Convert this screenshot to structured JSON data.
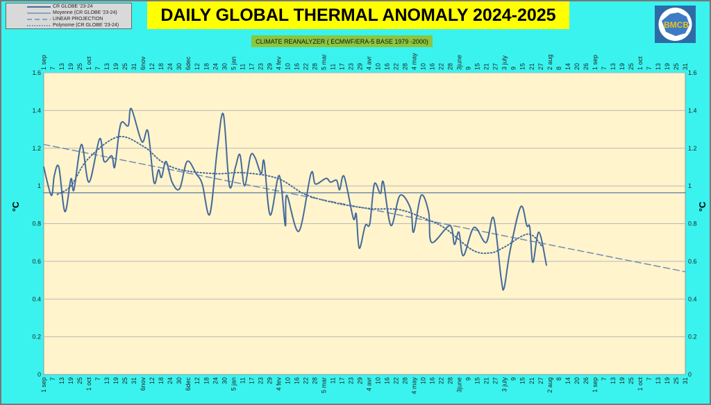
{
  "chart_data": {
    "type": "line",
    "title": "DAILY GLOBAL THERMAL ANOMALY 2024-2025",
    "subtitle": "CLIMATE REANALYZER ( ECMWF/ERA-5 BASE 1979 -2000)",
    "ylabel": "°C",
    "ylabel_right": "°C",
    "ylim": [
      0,
      1.6
    ],
    "yticks": [
      "0",
      "0.2",
      "0.4",
      "0.6",
      "0.8",
      "1",
      "1.2",
      "1.4",
      "1.6"
    ],
    "xlim": [
      "2024-09-01",
      "2025-10-31"
    ],
    "xticks": [
      "1 sep",
      "7",
      "13",
      "19",
      "25",
      "1 oct",
      "7",
      "13",
      "19",
      "25",
      "31",
      "6nov",
      "12",
      "18",
      "24",
      "30",
      "6dec",
      "12",
      "18",
      "24",
      "30",
      "5 jan",
      "11",
      "17",
      "23",
      "29",
      "4 fev",
      "10",
      "16",
      "22",
      "28",
      "5 mar",
      "11",
      "17",
      "23",
      "29",
      "4 avr",
      "10",
      "16",
      "22",
      "28",
      "4 may",
      "10",
      "16",
      "22",
      "28",
      "3june",
      "9",
      "15",
      "21",
      "27",
      "3 july",
      "9",
      "15",
      "21",
      "27",
      "2 aug",
      "8",
      "14",
      "20",
      "26",
      "1 sep",
      "7",
      "13",
      "19",
      "25",
      "1 oct",
      "7",
      "13",
      "19",
      "25",
      "31"
    ],
    "grid": true,
    "legend_position": "top-left",
    "colors": {
      "series": "#44699a",
      "background": "#3af3ee",
      "plot": "#fff4cc",
      "title_box": "#ffff00",
      "subtitle_box": "#8cc63f"
    },
    "series": [
      {
        "name": "CR GLOBE '23-24",
        "style": "solid",
        "points": [
          [
            "2024-09-01",
            1.1
          ],
          [
            "2024-09-06",
            0.95
          ],
          [
            "2024-09-08",
            1.055
          ],
          [
            "2024-09-11",
            1.1
          ],
          [
            "2024-09-15",
            0.864
          ],
          [
            "2024-09-19",
            1.037
          ],
          [
            "2024-09-21",
            0.98
          ],
          [
            "2024-09-26",
            1.22
          ],
          [
            "2024-10-01",
            1.02
          ],
          [
            "2024-10-08",
            1.25
          ],
          [
            "2024-10-11",
            1.13
          ],
          [
            "2024-10-16",
            1.16
          ],
          [
            "2024-10-18",
            1.1
          ],
          [
            "2024-10-21",
            1.29
          ],
          [
            "2024-10-23",
            1.34
          ],
          [
            "2024-10-27",
            1.32
          ],
          [
            "2024-10-29",
            1.41
          ],
          [
            "2024-11-05",
            1.235
          ],
          [
            "2024-11-09",
            1.29
          ],
          [
            "2024-11-13",
            1.02
          ],
          [
            "2024-11-16",
            1.085
          ],
          [
            "2024-11-18",
            1.045
          ],
          [
            "2024-11-21",
            1.13
          ],
          [
            "2024-11-25",
            1.02
          ],
          [
            "2024-11-30",
            0.985
          ],
          [
            "2024-12-05",
            1.13
          ],
          [
            "2024-12-11",
            1.065
          ],
          [
            "2024-12-15",
            1.01
          ],
          [
            "2024-12-20",
            0.85
          ],
          [
            "2024-12-25",
            1.195
          ],
          [
            "2024-12-29",
            1.38
          ],
          [
            "2025-01-02",
            1.0
          ],
          [
            "2025-01-06",
            1.1
          ],
          [
            "2025-01-09",
            1.165
          ],
          [
            "2025-01-12",
            1.0
          ],
          [
            "2025-01-16",
            1.16
          ],
          [
            "2025-01-19",
            1.15
          ],
          [
            "2025-01-23",
            1.065
          ],
          [
            "2025-01-25",
            1.13
          ],
          [
            "2025-01-29",
            0.846
          ],
          [
            "2025-02-04",
            1.055
          ],
          [
            "2025-02-08",
            0.79
          ],
          [
            "2025-02-09",
            0.95
          ],
          [
            "2025-02-17",
            0.76
          ],
          [
            "2025-02-25",
            1.065
          ],
          [
            "2025-02-28",
            1.01
          ],
          [
            "2025-03-07",
            1.04
          ],
          [
            "2025-03-10",
            1.02
          ],
          [
            "2025-03-14",
            1.03
          ],
          [
            "2025-03-16",
            0.98
          ],
          [
            "2025-03-19",
            1.05
          ],
          [
            "2025-03-25",
            0.83
          ],
          [
            "2025-03-27",
            0.85
          ],
          [
            "2025-03-29",
            0.67
          ],
          [
            "2025-04-02",
            0.79
          ],
          [
            "2025-04-05",
            0.8
          ],
          [
            "2025-04-08",
            1.01
          ],
          [
            "2025-04-12",
            0.96
          ],
          [
            "2025-04-14",
            1.02
          ],
          [
            "2025-04-19",
            0.79
          ],
          [
            "2025-04-25",
            0.95
          ],
          [
            "2025-05-02",
            0.88
          ],
          [
            "2025-05-04",
            0.755
          ],
          [
            "2025-05-09",
            0.95
          ],
          [
            "2025-05-14",
            0.86
          ],
          [
            "2025-05-16",
            0.7
          ],
          [
            "2025-05-28",
            0.79
          ],
          [
            "2025-05-31",
            0.69
          ],
          [
            "2025-06-03",
            0.755
          ],
          [
            "2025-06-06",
            0.63
          ],
          [
            "2025-06-13",
            0.78
          ],
          [
            "2025-06-21",
            0.7
          ],
          [
            "2025-06-26",
            0.83
          ],
          [
            "2025-07-01",
            0.51
          ],
          [
            "2025-07-03",
            0.46
          ],
          [
            "2025-07-07",
            0.66
          ],
          [
            "2025-07-14",
            0.89
          ],
          [
            "2025-07-18",
            0.79
          ],
          [
            "2025-07-20",
            0.78
          ],
          [
            "2025-07-22",
            0.595
          ],
          [
            "2025-07-26",
            0.755
          ],
          [
            "2025-07-31",
            0.58
          ]
        ]
      },
      {
        "name": "Moyenne (CR GLOBE '23-24)",
        "style": "solid-thin",
        "points": [
          [
            "2024-09-01",
            0.964
          ],
          [
            "2025-10-31",
            0.964
          ]
        ]
      },
      {
        "name": "LINEAR PROJECTION",
        "style": "dashed",
        "points": [
          [
            "2024-09-01",
            1.22
          ],
          [
            "2025-10-31",
            0.545
          ]
        ]
      },
      {
        "name": "Polynome (CR GLOBE '23-24)",
        "style": "dotted",
        "points": [
          [
            "2024-09-10",
            0.955
          ],
          [
            "2024-09-19",
            1.0
          ],
          [
            "2024-09-30",
            1.14
          ],
          [
            "2024-10-20",
            1.26
          ],
          [
            "2024-11-06",
            1.21
          ],
          [
            "2024-11-18",
            1.13
          ],
          [
            "2024-12-01",
            1.085
          ],
          [
            "2024-12-24",
            1.065
          ],
          [
            "2025-01-11",
            1.07
          ],
          [
            "2025-02-03",
            1.04
          ],
          [
            "2025-02-21",
            0.956
          ],
          [
            "2025-03-13",
            0.91
          ],
          [
            "2025-04-05",
            0.88
          ],
          [
            "2025-04-24",
            0.875
          ],
          [
            "2025-05-09",
            0.835
          ],
          [
            "2025-05-24",
            0.78
          ],
          [
            "2025-06-12",
            0.66
          ],
          [
            "2025-06-24",
            0.645
          ],
          [
            "2025-07-03",
            0.675
          ],
          [
            "2025-07-19",
            0.745
          ],
          [
            "2025-07-28",
            0.68
          ]
        ]
      }
    ]
  }
}
